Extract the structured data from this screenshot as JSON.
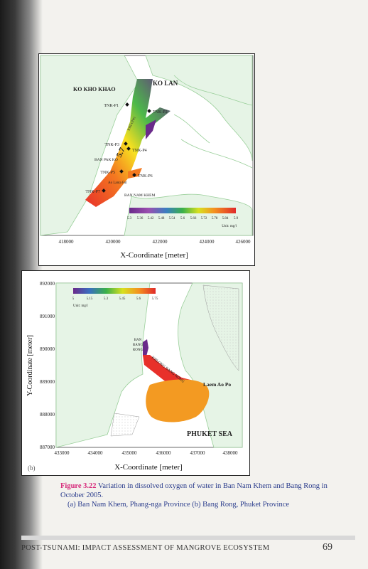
{
  "figure_a": {
    "place_labels": [
      "KO KHO KHAO",
      "KO LAN",
      "BAN PAK KO",
      "BAN NAM KHEM"
    ],
    "stations": [
      "TNK-P1",
      "TNK-P2",
      "TNK-P3",
      "TNK-P4",
      "TNK-P5",
      "TNK-P6",
      "TNK-P7"
    ],
    "contour_label": "5.7",
    "channel_labels": [
      "KHLONG",
      "Ao Lanta Fut"
    ],
    "x_axis_title": "X-Coordinate [meter]",
    "x_ticks": [
      "418000",
      "420000",
      "422000",
      "424000",
      "426000"
    ],
    "legend_values": [
      "5.3",
      "5.36",
      "5.42",
      "5.48",
      "5.54",
      "5.6",
      "5.66",
      "5.72",
      "5.78",
      "5.84",
      "5.9"
    ],
    "legend_unit": "Unit: mg/l"
  },
  "figure_b": {
    "place_labels": [
      "BAN BANG RONG",
      "Laem Ao Po",
      "PHUKET SEA"
    ],
    "channel_label": "KHLONG BANG RONG",
    "x_axis_title": "X-Coordinate [meter]",
    "y_axis_title": "Y-Coordinate [meter]",
    "x_ticks": [
      "433000",
      "434000",
      "435000",
      "436000",
      "437000",
      "438000"
    ],
    "y_ticks": [
      "892000",
      "891000",
      "890000",
      "889000",
      "888000",
      "887000"
    ],
    "legend_values": [
      "5",
      "5.15",
      "5.3",
      "5.45",
      "5.6",
      "5.75"
    ],
    "legend_unit": "Unit: mg/l",
    "panel_label": "(b)"
  },
  "caption": {
    "label": "Figure 3.22",
    "text": "Variation in dissolved oxygen of water in Ban Nam Khem and Bang Rong in October 2005.",
    "line2": "(a) Ban Nam Khem, Phang-nga Province (b) Bang Rong, Phuket Province"
  },
  "footer": {
    "title": "POST-TSUNAMI: IMPACT ASSESSMENT OF MANGROVE ECOSYSTEM",
    "page_number": "69"
  },
  "colors": {
    "land": "#e6f4e6",
    "shoreline": "#9acf9a",
    "caption_text": "#2a3c8c",
    "caption_label": "#d6287a"
  }
}
